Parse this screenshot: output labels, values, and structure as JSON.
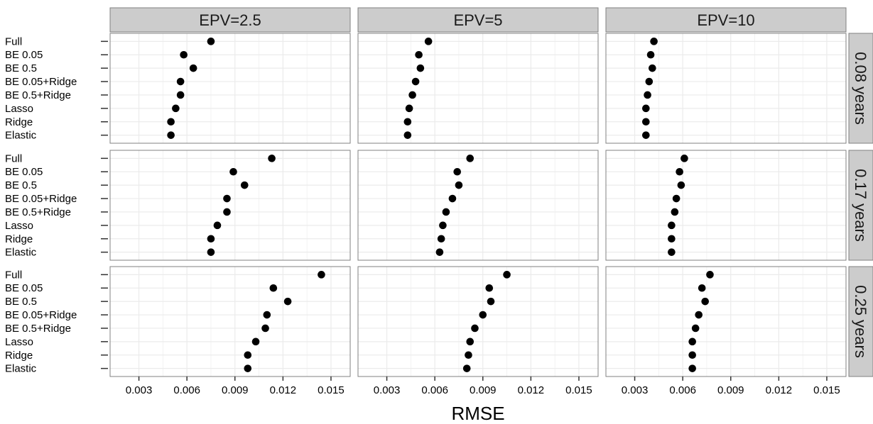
{
  "chart_data": {
    "type": "scatter",
    "xlabel": "RMSE",
    "ylabel": "",
    "xlim": [
      0.0012,
      0.0162
    ],
    "xticks": [
      0.003,
      0.006,
      0.009,
      0.012,
      0.015
    ],
    "xtick_labels": [
      "0.003",
      "0.006",
      "0.009",
      "0.012",
      "0.015"
    ],
    "categories": [
      "Full",
      "BE 0.05",
      "BE 0.5",
      "BE 0.05+Ridge",
      "BE 0.5+Ridge",
      "Lasso",
      "Ridge",
      "Elastic"
    ],
    "col_facets": [
      "EPV=2.5",
      "EPV=5",
      "EPV=10"
    ],
    "row_facets": [
      "0.08 years",
      "0.17 years",
      "0.25 years"
    ],
    "grid": true,
    "colors": {
      "panel_bg": "#ffffff",
      "panel_border": "#808080",
      "grid": "#ebebeb",
      "strip_bg": "#cccccc",
      "point": "#000000"
    },
    "values": [
      [
        [
          0.0075,
          0.0058,
          0.0064,
          0.0056,
          0.0056,
          0.0053,
          0.005,
          0.005
        ],
        [
          0.0056,
          0.005,
          0.0051,
          0.0048,
          0.0046,
          0.0044,
          0.0043,
          0.0043
        ],
        [
          0.0042,
          0.004,
          0.0041,
          0.0039,
          0.0038,
          0.0037,
          0.0037,
          0.0037
        ]
      ],
      [
        [
          0.0113,
          0.0089,
          0.0096,
          0.0085,
          0.0085,
          0.0079,
          0.0075,
          0.0075
        ],
        [
          0.0082,
          0.0074,
          0.0075,
          0.0071,
          0.0067,
          0.0065,
          0.0064,
          0.0063
        ],
        [
          0.0061,
          0.0058,
          0.0059,
          0.0056,
          0.0055,
          0.0053,
          0.0053,
          0.0053
        ]
      ],
      [
        [
          0.0144,
          0.0114,
          0.0123,
          0.011,
          0.0109,
          0.0103,
          0.0098,
          0.0098
        ],
        [
          0.0105,
          0.0094,
          0.0095,
          0.009,
          0.0085,
          0.0082,
          0.0081,
          0.008
        ],
        [
          0.0077,
          0.0072,
          0.0074,
          0.007,
          0.0068,
          0.0066,
          0.0066,
          0.0066
        ]
      ]
    ]
  }
}
